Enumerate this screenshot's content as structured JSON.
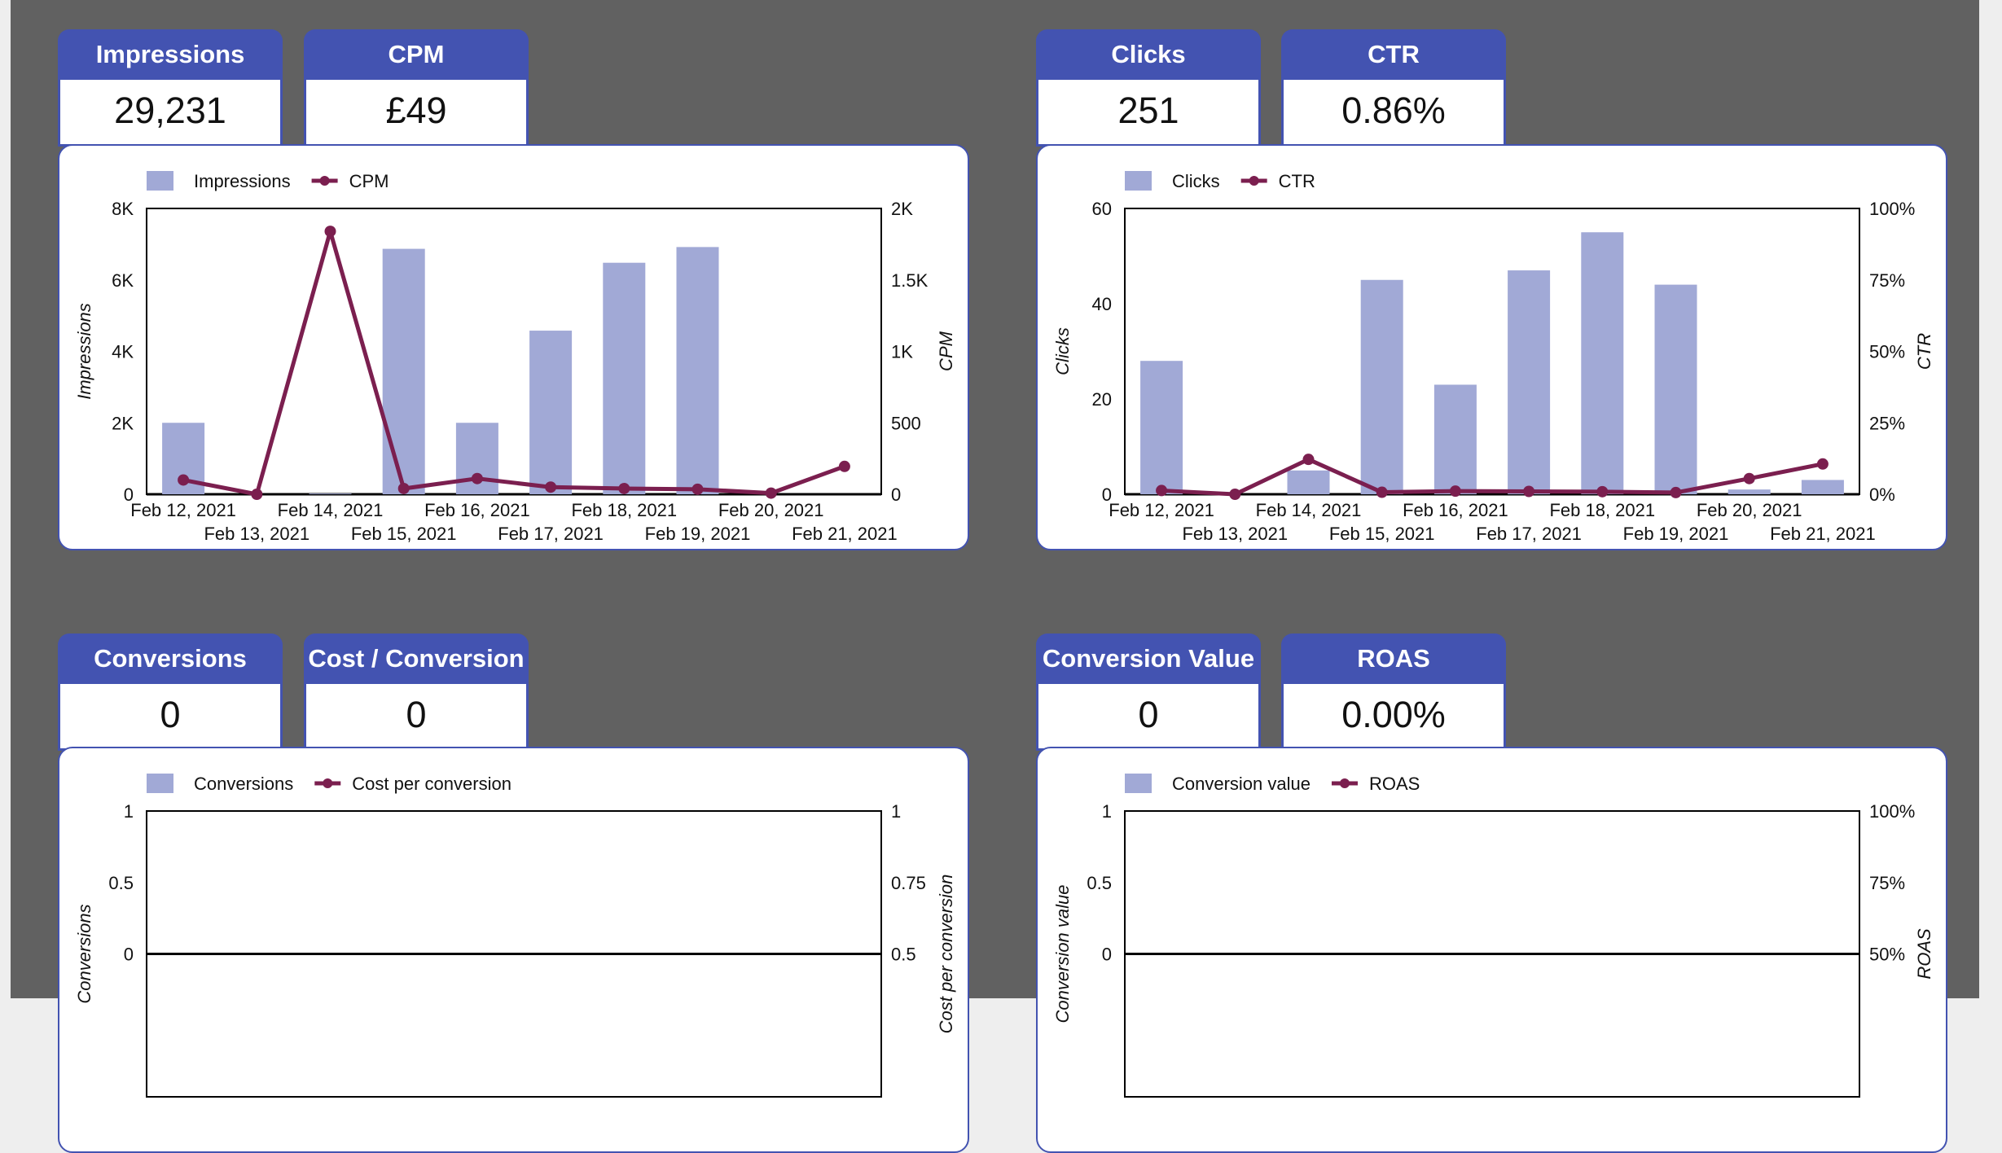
{
  "colors": {
    "header": "#4353b1",
    "bar": "#a1a9d6",
    "line": "#7b1f4f",
    "background": "#616161"
  },
  "kpis": [
    {
      "label": "Impressions",
      "value": "29,231"
    },
    {
      "label": "CPM",
      "value": "£49"
    },
    {
      "label": "Clicks",
      "value": "251"
    },
    {
      "label": "CTR",
      "value": "0.86%"
    },
    {
      "label": "Conversions",
      "value": "0"
    },
    {
      "label": "Cost / Conversion",
      "value": "0"
    },
    {
      "label": "Conversion Value",
      "value": "0"
    },
    {
      "label": "ROAS",
      "value": "0.00%"
    }
  ],
  "chart_data": [
    {
      "type": "bar+line",
      "categories": [
        "Feb 12, 2021",
        "Feb 13, 2021",
        "Feb 14, 2021",
        "Feb 15, 2021",
        "Feb 16, 2021",
        "Feb 17, 2021",
        "Feb 18, 2021",
        "Feb 19, 2021",
        "Feb 20, 2021",
        "Feb 21, 2021"
      ],
      "series": [
        {
          "name": "Impressions",
          "kind": "bar",
          "axis": "left",
          "values": [
            2000,
            0,
            20,
            6870,
            2000,
            4580,
            6480,
            6920,
            0,
            0
          ]
        },
        {
          "name": "CPM",
          "kind": "line",
          "axis": "right",
          "values": [
            100,
            0,
            1840,
            40,
            110,
            50,
            40,
            35,
            8,
            195
          ]
        }
      ],
      "ylabel": "Impressions",
      "y2label": "CPM",
      "ylim": [
        0,
        8000
      ],
      "y2lim": [
        0,
        2000
      ],
      "yticks": [
        {
          "v": 0,
          "t": "0"
        },
        {
          "v": 2000,
          "t": "2K"
        },
        {
          "v": 4000,
          "t": "4K"
        },
        {
          "v": 6000,
          "t": "6K"
        },
        {
          "v": 8000,
          "t": "8K"
        }
      ],
      "y2ticks": [
        {
          "v": 0,
          "t": "0"
        },
        {
          "v": 500,
          "t": "500"
        },
        {
          "v": 1000,
          "t": "1K"
        },
        {
          "v": 1500,
          "t": "1.5K"
        },
        {
          "v": 2000,
          "t": "2K"
        }
      ],
      "legend": "top-left",
      "grid": false
    },
    {
      "type": "bar+line",
      "categories": [
        "Feb 12, 2021",
        "Feb 13, 2021",
        "Feb 14, 2021",
        "Feb 15, 2021",
        "Feb 16, 2021",
        "Feb 17, 2021",
        "Feb 18, 2021",
        "Feb 19, 2021",
        "Feb 20, 2021",
        "Feb 21, 2021"
      ],
      "series": [
        {
          "name": "Clicks",
          "kind": "bar",
          "axis": "left",
          "values": [
            28,
            0,
            5,
            45,
            23,
            47,
            55,
            44,
            1,
            3
          ]
        },
        {
          "name": "CTR",
          "kind": "line",
          "axis": "right",
          "values": [
            1.3,
            0,
            12.2,
            0.7,
            1.1,
            1.0,
            0.9,
            0.6,
            5.5,
            10.6
          ]
        }
      ],
      "ylabel": "Clicks",
      "y2label": "CTR",
      "ylim": [
        0,
        60
      ],
      "y2lim": [
        0,
        100
      ],
      "yticks": [
        {
          "v": 0,
          "t": "0"
        },
        {
          "v": 20,
          "t": "20"
        },
        {
          "v": 40,
          "t": "40"
        },
        {
          "v": 60,
          "t": "60"
        }
      ],
      "y2ticks": [
        {
          "v": 0,
          "t": "0%"
        },
        {
          "v": 25,
          "t": "25%"
        },
        {
          "v": 50,
          "t": "50%"
        },
        {
          "v": 75,
          "t": "75%"
        },
        {
          "v": 100,
          "t": "100%"
        }
      ],
      "legend": "top-left",
      "grid": false
    },
    {
      "type": "bar+line",
      "categories": [],
      "series": [
        {
          "name": "Conversions",
          "kind": "bar",
          "axis": "left",
          "values": []
        },
        {
          "name": "Cost per conversion",
          "kind": "line",
          "axis": "right",
          "values": []
        }
      ],
      "ylabel": "Conversions",
      "y2label": "Cost per conversion",
      "ylim": [
        -1,
        1
      ],
      "y2lim": [
        0,
        1
      ],
      "yticks": [
        {
          "v": 0,
          "t": "0"
        },
        {
          "v": 0.5,
          "t": "0.5"
        },
        {
          "v": 1,
          "t": "1"
        }
      ],
      "y2ticks": [
        {
          "v": 0.5,
          "t": "0.5"
        },
        {
          "v": 0.75,
          "t": "0.75"
        },
        {
          "v": 1,
          "t": "1"
        }
      ],
      "legend": "top-left",
      "grid": false
    },
    {
      "type": "bar+line",
      "categories": [],
      "series": [
        {
          "name": "Conversion value",
          "kind": "bar",
          "axis": "left",
          "values": []
        },
        {
          "name": "ROAS",
          "kind": "line",
          "axis": "right",
          "values": []
        }
      ],
      "ylabel": "Conversion value",
      "y2label": "ROAS",
      "ylim": [
        -1,
        1
      ],
      "y2lim": [
        0,
        1
      ],
      "yticks": [
        {
          "v": 0,
          "t": "0"
        },
        {
          "v": 0.5,
          "t": "0.5"
        },
        {
          "v": 1,
          "t": "1"
        }
      ],
      "y2ticks": [
        {
          "v": 0.5,
          "t": "50%"
        },
        {
          "v": 0.75,
          "t": "75%"
        },
        {
          "v": 1,
          "t": "100%"
        }
      ],
      "legend": "top-left",
      "grid": false
    }
  ]
}
